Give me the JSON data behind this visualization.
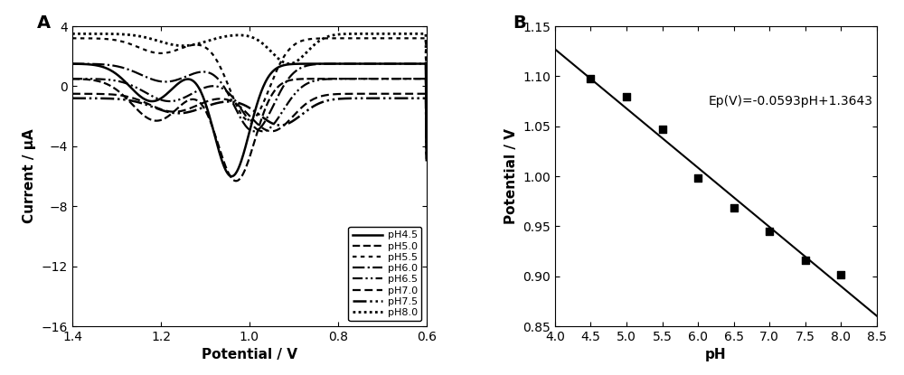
{
  "panel_A": {
    "xlabel": "Potential / V",
    "ylabel": "Current / μA",
    "xlim": [
      1.4,
      0.6
    ],
    "ylim": [
      -16,
      4
    ],
    "yticks": [
      -16,
      -12,
      -8,
      -4,
      0,
      4
    ],
    "xticks": [
      1.4,
      1.2,
      1.0,
      0.8,
      0.6
    ]
  },
  "panel_B": {
    "xlabel": "pH",
    "ylabel": "Potential / V",
    "xlim": [
      4.0,
      8.5
    ],
    "ylim": [
      0.85,
      1.15
    ],
    "yticks": [
      0.85,
      0.9,
      0.95,
      1.0,
      1.05,
      1.1,
      1.15
    ],
    "xticks": [
      4.0,
      4.5,
      5.0,
      5.5,
      6.0,
      6.5,
      7.0,
      7.5,
      8.0,
      8.5
    ],
    "scatter_x": [
      4.5,
      5.0,
      5.5,
      6.0,
      6.5,
      7.0,
      7.5,
      8.0
    ],
    "scatter_y": [
      1.098,
      1.08,
      1.047,
      0.998,
      0.968,
      0.945,
      0.916,
      0.902
    ],
    "fit_slope": -0.0593,
    "fit_intercept": 1.3643,
    "equation": "Ep(V)=-0.0593pH+1.3643",
    "eq_x": 6.15,
    "eq_y": 1.075
  }
}
